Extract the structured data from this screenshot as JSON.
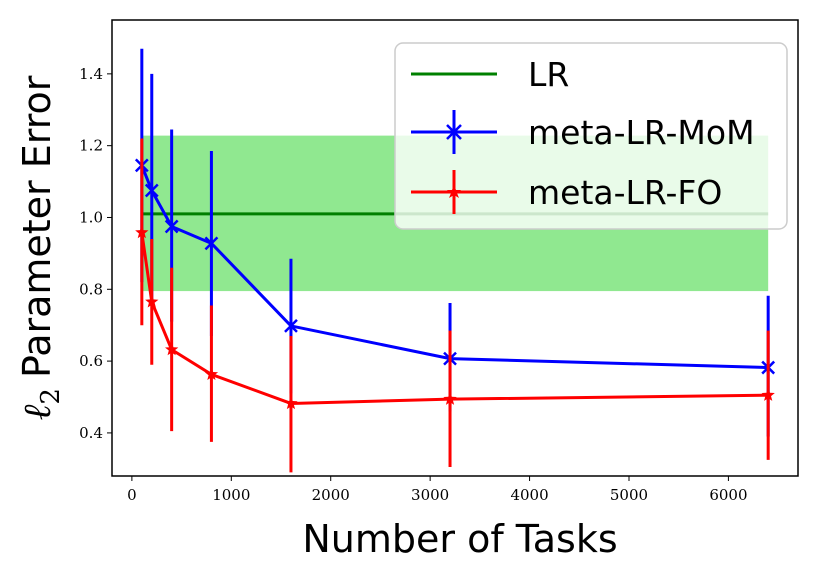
{
  "chart_data": {
    "type": "line",
    "xlabel": "Number of Tasks",
    "ylabel_parts": {
      "symbol": "ℓ",
      "subscript": "2",
      "text": "Parameter Error"
    },
    "xlim": [
      -200,
      6700
    ],
    "ylim": [
      0.28,
      1.55
    ],
    "x_ticks": [
      {
        "value": 0,
        "label": "0"
      },
      {
        "value": 1000,
        "label": "1000"
      },
      {
        "value": 2000,
        "label": "2000"
      },
      {
        "value": 3000,
        "label": "3000"
      },
      {
        "value": 4000,
        "label": "4000"
      },
      {
        "value": 5000,
        "label": "5000"
      },
      {
        "value": 6000,
        "label": "6000"
      }
    ],
    "y_ticks": [
      {
        "value": 0.4,
        "label": "0.4"
      },
      {
        "value": 0.6,
        "label": "0.6"
      },
      {
        "value": 0.8,
        "label": "0.8"
      },
      {
        "value": 1.0,
        "label": "1.0"
      },
      {
        "value": 1.2,
        "label": "1.2"
      },
      {
        "value": 1.4,
        "label": "1.4"
      }
    ],
    "grid": false,
    "legend_position": "top-right",
    "bands": [
      {
        "series": "LR",
        "x": [
          100,
          6400
        ],
        "y_low": 0.795,
        "y_high": 1.228,
        "color": "#90e890"
      }
    ],
    "series": [
      {
        "name": "LR",
        "color": "#008000",
        "marker": "none",
        "x": [
          100,
          6400
        ],
        "y": [
          1.01,
          1.01
        ],
        "err_low": null,
        "err_high": null
      },
      {
        "name": "meta-LR-MoM",
        "color": "#0000ff",
        "marker": "x",
        "x": [
          100,
          200,
          400,
          800,
          1600,
          3200,
          6400
        ],
        "y": [
          1.145,
          1.075,
          0.975,
          0.928,
          0.698,
          0.607,
          0.582
        ],
        "err_low": [
          0.82,
          0.76,
          0.71,
          0.67,
          0.51,
          0.46,
          0.39
        ],
        "err_high": [
          1.47,
          1.4,
          1.245,
          1.185,
          0.885,
          0.762,
          0.782
        ]
      },
      {
        "name": "meta-LR-FO",
        "color": "#ff0000",
        "marker": "star",
        "x": [
          100,
          200,
          400,
          800,
          1600,
          3200,
          6400
        ],
        "y": [
          0.958,
          0.765,
          0.632,
          0.563,
          0.482,
          0.494,
          0.505
        ],
        "err_low": [
          0.7,
          0.59,
          0.405,
          0.375,
          0.29,
          0.305,
          0.325
        ],
        "err_high": [
          1.22,
          0.94,
          0.86,
          0.755,
          0.67,
          0.685,
          0.685
        ]
      }
    ]
  }
}
